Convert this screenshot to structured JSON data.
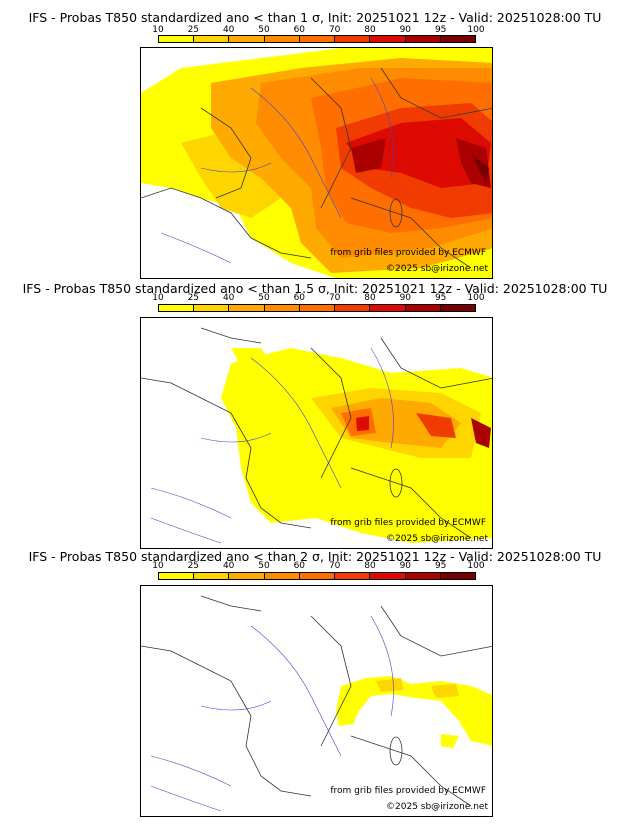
{
  "colorbar": {
    "ticks": [
      "10",
      "25",
      "40",
      "50",
      "60",
      "70",
      "80",
      "90",
      "95",
      "100"
    ],
    "colors": [
      "#ffff00",
      "#ffd500",
      "#ffaa00",
      "#ff8c00",
      "#ff6e00",
      "#f03c00",
      "#dc0a00",
      "#aa0000",
      "#780000"
    ]
  },
  "panels": [
    {
      "title": "IFS - Probas T850  standardized ano < than 1 σ, Init: 20251021 12z - Valid: 20251028:00 TU",
      "credit_grib": "from grib files provided by ECMWF",
      "credit_site": "©2025 sb@irizone.net"
    },
    {
      "title": "IFS - Probas T850  standardized ano < than 1.5 σ, Init: 20251021 12z - Valid: 20251028:00 TU",
      "credit_grib": "from grib files provided by ECMWF",
      "credit_site": "©2025 sb@irizone.net"
    },
    {
      "title": "IFS - Probas T850  standardized ano < than 2 σ, Init: 20251021 12z - Valid: 20251028:00 TU",
      "credit_grib": "from grib files provided by ECMWF",
      "credit_site": "©2025 sb@irizone.net"
    }
  ]
}
